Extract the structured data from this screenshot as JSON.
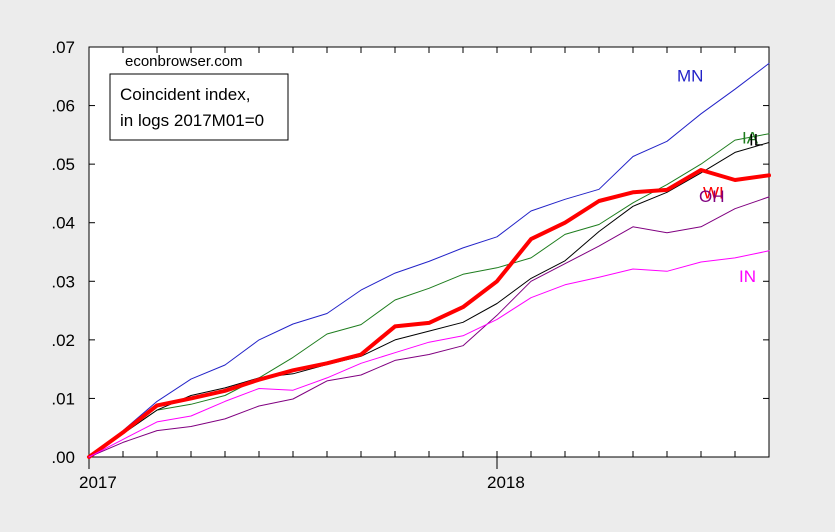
{
  "chart_data": {
    "type": "line",
    "watermark": "econbrowser.com",
    "legend_box": [
      "Coincident index,",
      "in logs 2017M01=0"
    ],
    "x": [
      "2017-01",
      "2017-02",
      "2017-03",
      "2017-04",
      "2017-05",
      "2017-06",
      "2017-07",
      "2017-08",
      "2017-09",
      "2017-10",
      "2017-11",
      "2017-12",
      "2018-01",
      "2018-02",
      "2018-03",
      "2018-04",
      "2018-05",
      "2018-06",
      "2018-07",
      "2018-08",
      "2018-09"
    ],
    "x_tick_labels": [
      {
        "x": "2017-01",
        "label": "2017"
      },
      {
        "x": "2018-01",
        "label": "2018"
      }
    ],
    "ylim": [
      0,
      0.07
    ],
    "y_ticks": [
      0,
      0.01,
      0.02,
      0.03,
      0.04,
      0.05,
      0.06,
      0.07
    ],
    "y_tick_labels": [
      ".00",
      ".01",
      ".02",
      ".03",
      ".04",
      ".05",
      ".06",
      ".07"
    ],
    "grid": false,
    "series": [
      {
        "name": "MN",
        "color": "#2323c8",
        "width": 1,
        "values": [
          0,
          0.0045,
          0.0095,
          0.0133,
          0.0157,
          0.02,
          0.0227,
          0.0245,
          0.0285,
          0.0314,
          0.0334,
          0.0357,
          0.0376,
          0.042,
          0.044,
          0.0457,
          0.0513,
          0.0539,
          0.0586,
          0.0628,
          0.0672
        ]
      },
      {
        "name": "IA",
        "color": "#1e7d1e",
        "width": 1,
        "values": [
          0,
          0.004,
          0.008,
          0.009,
          0.0105,
          0.0135,
          0.017,
          0.021,
          0.0226,
          0.0268,
          0.0288,
          0.0312,
          0.0323,
          0.034,
          0.038,
          0.0397,
          0.0434,
          0.0465,
          0.05,
          0.0541,
          0.0552
        ]
      },
      {
        "name": "IL",
        "color": "#000000",
        "width": 1,
        "values": [
          0,
          0.004,
          0.008,
          0.0105,
          0.0118,
          0.0135,
          0.0142,
          0.0158,
          0.0172,
          0.02,
          0.0215,
          0.023,
          0.0262,
          0.0305,
          0.0335,
          0.0385,
          0.0428,
          0.0452,
          0.0485,
          0.052,
          0.0537
        ]
      },
      {
        "name": "WI",
        "color": "#ff0000",
        "width": 4,
        "values": [
          0,
          0.0042,
          0.0088,
          0.01,
          0.0113,
          0.0132,
          0.0148,
          0.016,
          0.0175,
          0.0223,
          0.0229,
          0.0256,
          0.03,
          0.0372,
          0.04,
          0.0437,
          0.0452,
          0.0456,
          0.049,
          0.0473,
          0.0481
        ]
      },
      {
        "name": "OH",
        "color": "#800080",
        "width": 1,
        "values": [
          0,
          0.0025,
          0.0045,
          0.0052,
          0.0065,
          0.0087,
          0.0099,
          0.013,
          0.014,
          0.0165,
          0.0175,
          0.019,
          0.0242,
          0.03,
          0.033,
          0.036,
          0.0393,
          0.0383,
          0.0393,
          0.0424,
          0.0444
        ]
      },
      {
        "name": "IN",
        "color": "#ff00ff",
        "width": 1,
        "values": [
          0,
          0.003,
          0.006,
          0.007,
          0.0095,
          0.0117,
          0.0114,
          0.0135,
          0.016,
          0.0178,
          0.0196,
          0.0207,
          0.0235,
          0.0272,
          0.0294,
          0.0307,
          0.0321,
          0.0317,
          0.0333,
          0.034,
          0.0352
        ]
      }
    ]
  }
}
